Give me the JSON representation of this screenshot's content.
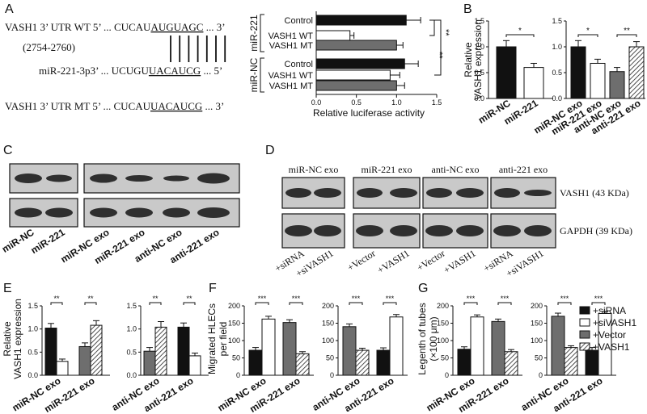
{
  "panels": {
    "A": "A",
    "B": "B",
    "C": "C",
    "D": "D",
    "E": "E",
    "F": "F",
    "G": "G"
  },
  "sequences": {
    "wt_label": "VASH1 3’ UTR WT 5’ ... CUCAU",
    "wt_site": "AUGUAGC",
    "wt_end": " ... 3’",
    "position": "(2754-2760)",
    "mir_label": "miR-221-3p",
    "mir_mid": "3’ ... UCUGU",
    "mir_site": "UACAUCG",
    "mir_end": " ... 5’",
    "mt_label": "VASH1 3’ UTR MT 5’ ... CUCAU",
    "mt_site": "UACAUCG",
    "mt_end": " ... 3’"
  },
  "blots": {
    "C_labels": [
      "miR-NC",
      "miR-221",
      "miR-NC exo",
      "miR-221 exo",
      "anti-NC exo",
      "anti-221 exo"
    ],
    "D_top": [
      "miR-NC exo",
      "miR-221 exo",
      "anti-NC exo",
      "anti-221 exo"
    ],
    "D_bottom": [
      "+siRNA",
      "+siVASH1",
      "+Vector",
      "+VASH1",
      "+Vector",
      "+VASH1",
      "+siRNA",
      "+siVASH1"
    ],
    "D_bands": [
      "VASH1 (43 KDa)",
      "GAPDH (39 KDa)"
    ]
  },
  "legend_G": [
    "+siRNA",
    "+siVASH1",
    "+Vector",
    "+VASH1"
  ],
  "colors": {
    "black": "#111111",
    "white": "#ffffff",
    "gray": "#6e6e6e",
    "hatch": "#222222"
  },
  "chart_data": [
    {
      "id": "A",
      "type": "bar",
      "orientation": "horizontal",
      "title": "",
      "xlabel": "Relative luciferase activity",
      "xlim": [
        0,
        1.5
      ],
      "xticks": [
        "0.0",
        "0.5",
        "1.0",
        "1.5"
      ],
      "group_labels": [
        "miR-221",
        "miR-NC"
      ],
      "categories": [
        "Control",
        "VASH1 WT",
        "VASH1 MT",
        "Control",
        "VASH1 WT",
        "VASH1 MT"
      ],
      "values": [
        1.12,
        0.42,
        1.0,
        1.1,
        0.92,
        1.0
      ],
      "errors": [
        0.18,
        0.05,
        0.08,
        0.17,
        0.12,
        0.1
      ],
      "fills": [
        "black",
        "white",
        "gray",
        "black",
        "white",
        "gray"
      ],
      "sig": [
        "**",
        "**"
      ]
    },
    {
      "id": "B1",
      "type": "bar",
      "ylabel": "Relative VASH1 expression",
      "ylim": [
        0,
        1.5
      ],
      "yticks": [
        "0.0",
        "0.5",
        "1.0",
        "1.5"
      ],
      "categories": [
        "miR-NC",
        "miR-221"
      ],
      "values": [
        1.0,
        0.6
      ],
      "errors": [
        0.12,
        0.08
      ],
      "fills": [
        "black",
        "white"
      ],
      "sig": [
        "*"
      ]
    },
    {
      "id": "B2",
      "type": "bar",
      "ylim": [
        0,
        1.5
      ],
      "yticks": [
        "0.0",
        "0.5",
        "1.0",
        "1.5"
      ],
      "categories": [
        "miR-NC exo",
        "miR-221 exo",
        "anti-NC exo",
        "anti-221 exo"
      ],
      "values": [
        1.0,
        0.68,
        0.52,
        1.0
      ],
      "errors": [
        0.12,
        0.08,
        0.08,
        0.1
      ],
      "fills": [
        "black",
        "white",
        "gray",
        "hatch"
      ],
      "sig": [
        "*",
        "**"
      ]
    },
    {
      "id": "E",
      "type": "bar",
      "ylabel": "Relative VASH1 expression",
      "ylim": [
        0,
        1.5
      ],
      "yticks": [
        "0.0",
        "0.5",
        "1.0",
        "1.5"
      ],
      "groups": [
        {
          "label": "miR-NC exo",
          "values": [
            1.02,
            0.3
          ],
          "errors": [
            0.1,
            0.05
          ],
          "fills": [
            "black",
            "white"
          ]
        },
        {
          "label": "miR-221 exo",
          "values": [
            0.62,
            1.08
          ],
          "errors": [
            0.08,
            0.1
          ],
          "fills": [
            "gray",
            "hatch"
          ]
        },
        {
          "label": "anti-NC exo",
          "values": [
            0.52,
            1.04
          ],
          "errors": [
            0.08,
            0.12
          ],
          "fills": [
            "gray",
            "hatch"
          ]
        },
        {
          "label": "anti-221 exo",
          "values": [
            1.04,
            0.42
          ],
          "errors": [
            0.09,
            0.06
          ],
          "fills": [
            "black",
            "white"
          ]
        }
      ],
      "sig": [
        "**",
        "**",
        "**",
        "**"
      ]
    },
    {
      "id": "F",
      "type": "bar",
      "ylabel": "Migrated HLECs per field",
      "ylim": [
        0,
        200
      ],
      "yticks": [
        "0",
        "50",
        "100",
        "150",
        "200"
      ],
      "groups": [
        {
          "label": "miR-NC exo",
          "values": [
            72,
            162
          ],
          "errors": [
            8,
            8
          ],
          "fills": [
            "black",
            "white"
          ]
        },
        {
          "label": "miR-221 exo",
          "values": [
            152,
            62
          ],
          "errors": [
            8,
            6
          ],
          "fills": [
            "gray",
            "hatch"
          ]
        },
        {
          "label": "anti-NC exo",
          "values": [
            140,
            72
          ],
          "errors": [
            8,
            6
          ],
          "fills": [
            "gray",
            "hatch"
          ]
        },
        {
          "label": "anti-221 exo",
          "values": [
            72,
            168
          ],
          "errors": [
            7,
            7
          ],
          "fills": [
            "black",
            "white"
          ]
        }
      ],
      "sig": [
        "***",
        "***",
        "***",
        "***"
      ]
    },
    {
      "id": "G",
      "type": "bar",
      "ylabel": "Legenth of tubes (×100 μm)",
      "ylim": [
        0,
        200
      ],
      "yticks": [
        "0",
        "50",
        "100",
        "150",
        "200"
      ],
      "groups": [
        {
          "label": "miR-NC exo",
          "values": [
            75,
            168
          ],
          "errors": [
            7,
            6
          ],
          "fills": [
            "black",
            "white"
          ]
        },
        {
          "label": "miR-221 exo",
          "values": [
            155,
            68
          ],
          "errors": [
            7,
            6
          ],
          "fills": [
            "gray",
            "hatch"
          ]
        },
        {
          "label": "anti-NC exo",
          "values": [
            170,
            80
          ],
          "errors": [
            9,
            5
          ],
          "fills": [
            "gray",
            "hatch"
          ]
        },
        {
          "label": "anti-221 exo",
          "values": [
            72,
            178
          ],
          "errors": [
            8,
            6
          ],
          "fills": [
            "black",
            "white"
          ]
        }
      ],
      "sig": [
        "***",
        "***",
        "***",
        "***"
      ]
    }
  ]
}
